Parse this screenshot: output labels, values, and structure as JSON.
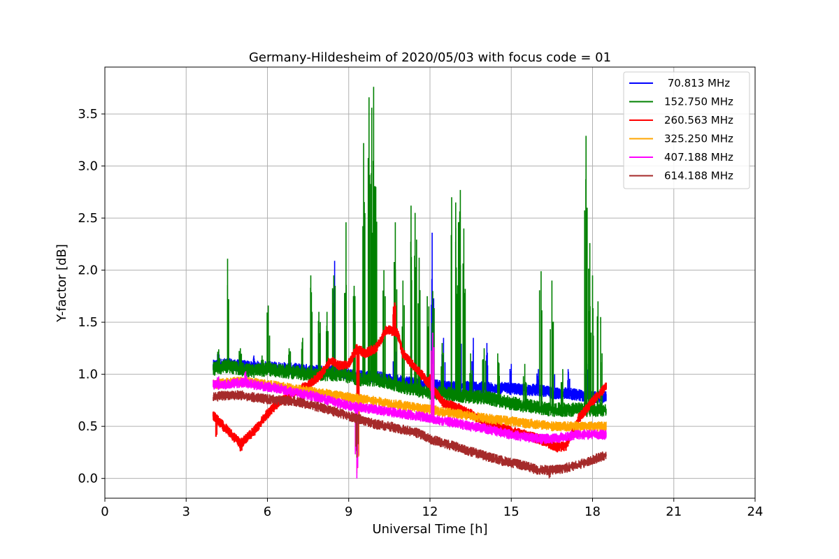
{
  "chart_data": {
    "type": "line",
    "title": "Germany-Hildesheim of 2020/05/03 with focus code = 01",
    "xlabel": "Universal Time [h]",
    "ylabel": "Y-factor [dB]",
    "xlim": [
      0,
      24
    ],
    "ylim": [
      -0.19,
      3.95
    ],
    "xticks": [
      0,
      3,
      6,
      9,
      12,
      15,
      18,
      21,
      24
    ],
    "xtick_labels": [
      "0",
      "3",
      "6",
      "9",
      "12",
      "15",
      "18",
      "21",
      "24"
    ],
    "yticks": [
      0.0,
      0.5,
      1.0,
      1.5,
      2.0,
      2.5,
      3.0,
      3.5
    ],
    "ytick_labels": [
      "0.0",
      "0.5",
      "1.0",
      "1.5",
      "2.0",
      "2.5",
      "3.0",
      "3.5"
    ],
    "grid": true,
    "legend_position": "top-right",
    "series": [
      {
        "name": "70.813 MHz",
        "legend_label": " 70.813 MHz",
        "color": "#0000ff",
        "points": [
          [
            4.0,
            1.08
          ],
          [
            4.5,
            1.1
          ],
          [
            5.0,
            1.08
          ],
          [
            5.5,
            1.07
          ],
          [
            6.0,
            1.07
          ],
          [
            6.5,
            1.06
          ],
          [
            7.0,
            1.05
          ],
          [
            7.5,
            1.04
          ],
          [
            8.0,
            1.03
          ],
          [
            8.5,
            1.04
          ],
          [
            9.0,
            1.0
          ],
          [
            9.5,
            0.98
          ],
          [
            10.0,
            0.98
          ],
          [
            10.5,
            0.95
          ],
          [
            11.0,
            0.93
          ],
          [
            11.5,
            0.92
          ],
          [
            12.0,
            0.9
          ],
          [
            12.5,
            0.88
          ],
          [
            13.0,
            0.88
          ],
          [
            13.5,
            0.88
          ],
          [
            14.0,
            0.87
          ],
          [
            14.5,
            0.87
          ],
          [
            15.0,
            0.86
          ],
          [
            15.5,
            0.85
          ],
          [
            16.0,
            0.85
          ],
          [
            16.5,
            0.82
          ],
          [
            17.0,
            0.82
          ],
          [
            17.5,
            0.8
          ],
          [
            18.0,
            0.78
          ],
          [
            18.5,
            0.78
          ]
        ],
        "spikes": [
          [
            4.2,
            1.22
          ],
          [
            5.5,
            1.18
          ],
          [
            8.48,
            2.09
          ],
          [
            10.7,
            1.28
          ],
          [
            12.08,
            2.36
          ],
          [
            12.5,
            1.35
          ],
          [
            13.1,
            1.55
          ],
          [
            13.6,
            1.35
          ],
          [
            14.1,
            1.3
          ],
          [
            15.0,
            1.1
          ],
          [
            16.0,
            1.05
          ],
          [
            16.6,
            1.0
          ],
          [
            17.1,
            1.05
          ],
          [
            17.8,
            1.1
          ]
        ]
      },
      {
        "name": "152.750 MHz",
        "legend_label": "152.750 MHz",
        "color": "#008000",
        "points": [
          [
            4.0,
            1.05
          ],
          [
            4.5,
            1.08
          ],
          [
            5.0,
            1.05
          ],
          [
            5.5,
            1.03
          ],
          [
            6.0,
            1.05
          ],
          [
            6.5,
            1.03
          ],
          [
            7.0,
            1.02
          ],
          [
            7.5,
            1.0
          ],
          [
            8.0,
            1.0
          ],
          [
            8.5,
            1.0
          ],
          [
            9.0,
            0.98
          ],
          [
            9.5,
            0.95
          ],
          [
            10.0,
            0.95
          ],
          [
            10.5,
            0.92
          ],
          [
            11.0,
            0.88
          ],
          [
            11.5,
            0.85
          ],
          [
            12.0,
            0.82
          ],
          [
            12.5,
            0.82
          ],
          [
            13.0,
            0.8
          ],
          [
            13.5,
            0.78
          ],
          [
            14.0,
            0.78
          ],
          [
            14.5,
            0.75
          ],
          [
            15.0,
            0.72
          ],
          [
            15.5,
            0.7
          ],
          [
            16.0,
            0.68
          ],
          [
            16.5,
            0.66
          ],
          [
            17.0,
            0.66
          ],
          [
            17.5,
            0.66
          ],
          [
            18.0,
            0.66
          ],
          [
            18.5,
            0.66
          ]
        ],
        "spikes": [
          [
            4.2,
            1.24
          ],
          [
            4.53,
            2.11
          ],
          [
            5.0,
            1.25
          ],
          [
            5.8,
            1.18
          ],
          [
            6.03,
            1.66
          ],
          [
            6.8,
            1.25
          ],
          [
            7.3,
            1.35
          ],
          [
            7.6,
            1.95
          ],
          [
            7.9,
            1.6
          ],
          [
            8.2,
            1.6
          ],
          [
            8.45,
            1.95
          ],
          [
            8.9,
            2.46
          ],
          [
            9.2,
            1.85
          ],
          [
            9.55,
            3.22
          ],
          [
            9.75,
            3.66
          ],
          [
            9.85,
            3.56
          ],
          [
            9.92,
            3.76
          ],
          [
            10.0,
            2.8
          ],
          [
            10.3,
            2.0
          ],
          [
            10.72,
            2.46
          ],
          [
            11.0,
            1.9
          ],
          [
            11.3,
            2.62
          ],
          [
            11.45,
            2.55
          ],
          [
            11.6,
            2.12
          ],
          [
            11.9,
            1.75
          ],
          [
            12.1,
            1.8
          ],
          [
            12.45,
            1.3
          ],
          [
            12.8,
            2.7
          ],
          [
            12.95,
            2.65
          ],
          [
            13.05,
            2.46
          ],
          [
            13.12,
            2.77
          ],
          [
            13.25,
            2.4
          ],
          [
            13.5,
            1.2
          ],
          [
            14.0,
            1.25
          ],
          [
            14.5,
            1.2
          ],
          [
            15.5,
            1.1
          ],
          [
            16.1,
            1.99
          ],
          [
            16.5,
            1.9
          ],
          [
            16.9,
            1.05
          ],
          [
            17.76,
            3.29
          ],
          [
            17.9,
            2.26
          ],
          [
            18.0,
            1.95
          ],
          [
            18.2,
            1.7
          ],
          [
            18.3,
            1.55
          ]
        ]
      },
      {
        "name": "260.563 MHz",
        "legend_label": "260.563 MHz",
        "color": "#ff0000",
        "points": [
          [
            4.0,
            0.6
          ],
          [
            4.5,
            0.47
          ],
          [
            5.0,
            0.33
          ],
          [
            5.5,
            0.45
          ],
          [
            6.0,
            0.62
          ],
          [
            6.5,
            0.75
          ],
          [
            7.0,
            0.82
          ],
          [
            7.5,
            0.9
          ],
          [
            8.0,
            1.0
          ],
          [
            8.3,
            1.13
          ],
          [
            8.7,
            1.08
          ],
          [
            9.0,
            1.1
          ],
          [
            9.3,
            1.25
          ],
          [
            9.6,
            1.2
          ],
          [
            10.0,
            1.25
          ],
          [
            10.4,
            1.43
          ],
          [
            10.8,
            1.4
          ],
          [
            11.0,
            1.2
          ],
          [
            11.5,
            1.05
          ],
          [
            12.0,
            0.9
          ],
          [
            12.5,
            0.72
          ],
          [
            13.0,
            0.68
          ],
          [
            13.5,
            0.62
          ],
          [
            14.0,
            0.55
          ],
          [
            14.5,
            0.5
          ],
          [
            15.0,
            0.45
          ],
          [
            15.5,
            0.42
          ],
          [
            16.0,
            0.38
          ],
          [
            16.5,
            0.32
          ],
          [
            17.0,
            0.3
          ],
          [
            17.5,
            0.58
          ],
          [
            18.0,
            0.74
          ],
          [
            18.5,
            0.88
          ]
        ],
        "spikes": [
          [
            4.1,
            0.4
          ],
          [
            5.0,
            0.26
          ],
          [
            9.32,
            0.1
          ],
          [
            10.7,
            1.69
          ],
          [
            12.0,
            1.0
          ],
          [
            16.7,
            0.25
          ]
        ]
      },
      {
        "name": "325.250 MHz",
        "legend_label": "325.250 MHz",
        "color": "#ffa500",
        "points": [
          [
            4.0,
            0.9
          ],
          [
            4.5,
            0.92
          ],
          [
            5.0,
            0.93
          ],
          [
            5.5,
            0.92
          ],
          [
            6.0,
            0.9
          ],
          [
            6.5,
            0.88
          ],
          [
            7.0,
            0.86
          ],
          [
            7.5,
            0.84
          ],
          [
            8.0,
            0.82
          ],
          [
            8.5,
            0.8
          ],
          [
            9.0,
            0.78
          ],
          [
            9.5,
            0.76
          ],
          [
            10.0,
            0.74
          ],
          [
            10.5,
            0.72
          ],
          [
            11.0,
            0.7
          ],
          [
            11.5,
            0.68
          ],
          [
            12.0,
            0.66
          ],
          [
            12.5,
            0.64
          ],
          [
            13.0,
            0.62
          ],
          [
            13.5,
            0.6
          ],
          [
            14.0,
            0.58
          ],
          [
            14.5,
            0.56
          ],
          [
            15.0,
            0.55
          ],
          [
            15.5,
            0.53
          ],
          [
            16.0,
            0.52
          ],
          [
            16.5,
            0.5
          ],
          [
            17.0,
            0.5
          ],
          [
            17.5,
            0.5
          ],
          [
            18.0,
            0.5
          ],
          [
            18.5,
            0.5
          ]
        ],
        "spikes": [
          [
            9.3,
            0.05
          ],
          [
            12.1,
            1.1
          ]
        ]
      },
      {
        "name": "407.188 MHz",
        "legend_label": "407.188 MHz",
        "color": "#ff00ff",
        "points": [
          [
            4.0,
            0.9
          ],
          [
            4.5,
            0.9
          ],
          [
            5.0,
            0.92
          ],
          [
            5.5,
            0.9
          ],
          [
            6.0,
            0.88
          ],
          [
            6.5,
            0.86
          ],
          [
            7.0,
            0.82
          ],
          [
            7.5,
            0.8
          ],
          [
            8.0,
            0.77
          ],
          [
            8.5,
            0.73
          ],
          [
            9.0,
            0.7
          ],
          [
            9.5,
            0.68
          ],
          [
            10.0,
            0.66
          ],
          [
            10.5,
            0.64
          ],
          [
            11.0,
            0.62
          ],
          [
            11.5,
            0.6
          ],
          [
            12.0,
            0.58
          ],
          [
            12.5,
            0.55
          ],
          [
            13.0,
            0.53
          ],
          [
            13.5,
            0.5
          ],
          [
            14.0,
            0.48
          ],
          [
            14.5,
            0.45
          ],
          [
            15.0,
            0.42
          ],
          [
            15.5,
            0.4
          ],
          [
            16.0,
            0.38
          ],
          [
            16.5,
            0.38
          ],
          [
            17.0,
            0.4
          ],
          [
            17.5,
            0.42
          ],
          [
            18.0,
            0.42
          ],
          [
            18.5,
            0.42
          ]
        ],
        "spikes": [
          [
            4.2,
            0.98
          ],
          [
            5.2,
            1.03
          ],
          [
            9.3,
            0.0
          ],
          [
            12.1,
            1.4
          ]
        ]
      },
      {
        "name": "614.188 MHz",
        "legend_label": "614.188 MHz",
        "color": "#a52a2a",
        "points": [
          [
            4.0,
            0.78
          ],
          [
            4.5,
            0.8
          ],
          [
            5.0,
            0.8
          ],
          [
            5.5,
            0.78
          ],
          [
            6.0,
            0.76
          ],
          [
            6.5,
            0.75
          ],
          [
            7.0,
            0.74
          ],
          [
            7.5,
            0.71
          ],
          [
            8.0,
            0.68
          ],
          [
            8.5,
            0.64
          ],
          [
            9.0,
            0.6
          ],
          [
            9.5,
            0.56
          ],
          [
            10.0,
            0.52
          ],
          [
            10.5,
            0.5
          ],
          [
            11.0,
            0.47
          ],
          [
            11.5,
            0.44
          ],
          [
            12.0,
            0.38
          ],
          [
            12.5,
            0.34
          ],
          [
            13.0,
            0.3
          ],
          [
            13.5,
            0.26
          ],
          [
            14.0,
            0.22
          ],
          [
            14.5,
            0.18
          ],
          [
            15.0,
            0.15
          ],
          [
            15.5,
            0.12
          ],
          [
            16.0,
            0.08
          ],
          [
            16.5,
            0.08
          ],
          [
            17.0,
            0.1
          ],
          [
            17.5,
            0.13
          ],
          [
            18.0,
            0.18
          ],
          [
            18.5,
            0.22
          ]
        ],
        "spikes": [
          [
            9.3,
            0.2
          ],
          [
            16.4,
            0.0
          ]
        ]
      }
    ]
  }
}
